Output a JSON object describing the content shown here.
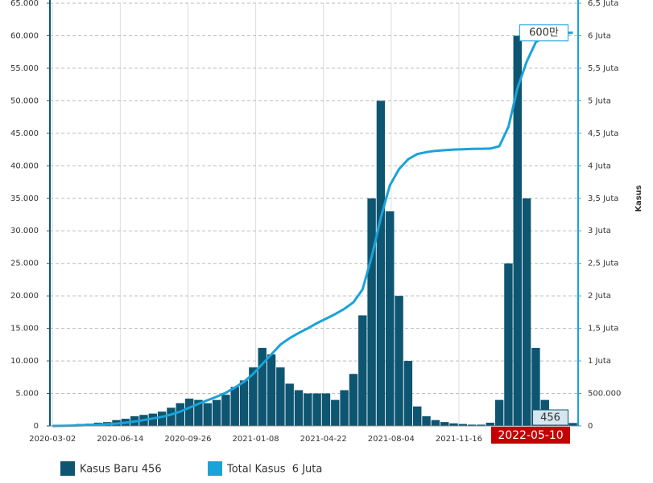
{
  "chart_data": {
    "type": "bar_line",
    "x": [
      "2020-03-02",
      "2020-03-16",
      "2020-03-30",
      "2020-04-13",
      "2020-04-27",
      "2020-05-11",
      "2020-05-25",
      "2020-06-08",
      "2020-06-22",
      "2020-07-06",
      "2020-07-20",
      "2020-08-03",
      "2020-08-17",
      "2020-08-31",
      "2020-09-14",
      "2020-09-28",
      "2020-10-12",
      "2020-10-26",
      "2020-11-09",
      "2020-11-23",
      "2020-12-07",
      "2020-12-21",
      "2021-01-04",
      "2021-01-18",
      "2021-02-01",
      "2021-02-15",
      "2021-03-01",
      "2021-03-15",
      "2021-03-29",
      "2021-04-12",
      "2021-04-26",
      "2021-05-10",
      "2021-05-24",
      "2021-06-07",
      "2021-06-21",
      "2021-07-05",
      "2021-07-19",
      "2021-08-02",
      "2021-08-16",
      "2021-08-30",
      "2021-09-13",
      "2021-09-27",
      "2021-10-11",
      "2021-10-25",
      "2021-11-08",
      "2021-11-22",
      "2021-12-06",
      "2021-12-20",
      "2022-01-03",
      "2022-01-17",
      "2022-01-31",
      "2022-02-14",
      "2022-02-28",
      "2022-03-14",
      "2022-03-28",
      "2022-04-11",
      "2022-04-25",
      "2022-05-10"
    ],
    "series": [
      {
        "name": "Kasus Baru 456",
        "color": "#0d5570",
        "axis": "y",
        "values": [
          0,
          100,
          150,
          300,
          350,
          500,
          600,
          900,
          1100,
          1500,
          1700,
          1900,
          2200,
          2800,
          3500,
          4200,
          4000,
          3500,
          4000,
          4800,
          6000,
          7000,
          9000,
          12000,
          11000,
          9000,
          6500,
          5500,
          5000,
          5000,
          5000,
          4000,
          5500,
          8000,
          17000,
          35000,
          50000,
          33000,
          20000,
          10000,
          3000,
          1500,
          900,
          600,
          400,
          300,
          200,
          200,
          500,
          4000,
          25000,
          60000,
          35000,
          12000,
          4000,
          1500,
          500,
          456
        ]
      },
      {
        "name": "Total Kasus  6 Juta",
        "color": "#1aa3d9",
        "axis": "y2",
        "values": [
          0,
          1500,
          4500,
          9000,
          14000,
          20000,
          28000,
          36000,
          50000,
          68000,
          90000,
          115000,
          140000,
          175000,
          220000,
          280000,
          340000,
          395000,
          450000,
          510000,
          590000,
          680000,
          800000,
          950000,
          1100000,
          1250000,
          1350000,
          1430000,
          1500000,
          1580000,
          1650000,
          1720000,
          1800000,
          1900000,
          2100000,
          2600000,
          3200000,
          3700000,
          3950000,
          4100000,
          4180000,
          4210000,
          4230000,
          4240000,
          4250000,
          4255000,
          4260000,
          4262000,
          4265000,
          4300000,
          4600000,
          5200000,
          5600000,
          5900000,
          6000000,
          6030000,
          6040000,
          6045000
        ]
      }
    ],
    "xlim": [
      "2020-02-27",
      "2022-05-18"
    ],
    "xticks": [
      "2020-03-02",
      "2020-06-14",
      "2020-09-26",
      "2021-01-08",
      "2021-04-22",
      "2021-08-04",
      "2021-11-16"
    ],
    "ylim": [
      0,
      65000
    ],
    "yticks": [
      0,
      {
        "value": 5000,
        "label": "5.000"
      },
      {
        "value": 10000,
        "label": "10.000"
      },
      {
        "value": 15000,
        "label": "15.000"
      },
      {
        "value": 20000,
        "label": "20.000"
      },
      {
        "value": 25000,
        "label": "25.000"
      },
      {
        "value": 30000,
        "label": "30.000"
      },
      {
        "value": 35000,
        "label": "35.000"
      },
      {
        "value": 40000,
        "label": "40.000"
      },
      {
        "value": 45000,
        "label": "45.000"
      },
      {
        "value": 50000,
        "label": "50.000"
      },
      {
        "value": 55000,
        "label": "55.000"
      },
      {
        "value": 60000,
        "label": "60.000"
      },
      {
        "value": 65000,
        "label": "65.000"
      }
    ],
    "y2lim": [
      0,
      6500000
    ],
    "y2ticks": [
      0,
      {
        "value": 500000,
        "label": "500.000"
      },
      {
        "value": 1000000,
        "label": "1 Juta"
      },
      {
        "value": 1500000,
        "label": "1,5 Juta"
      },
      {
        "value": 2000000,
        "label": "2 Juta"
      },
      {
        "value": 2500000,
        "label": "2,5 Juta"
      },
      {
        "value": 3000000,
        "label": "3 Juta"
      },
      {
        "value": 3500000,
        "label": "3,5 Juta"
      },
      {
        "value": 4000000,
        "label": "4 Juta"
      },
      {
        "value": 4500000,
        "label": "4,5 Juta"
      },
      {
        "value": 5000000,
        "label": "5 Juta"
      },
      {
        "value": 5500000,
        "label": "5,5 Juta"
      },
      {
        "value": 6000000,
        "label": "6 Juta"
      },
      {
        "value": 6500000,
        "label": "6,5 Juta"
      }
    ],
    "y2_label": "Kasus",
    "latest_date": "2022-05-10",
    "line_end_label": "600만",
    "bar_end_label": "456",
    "grid": true
  }
}
